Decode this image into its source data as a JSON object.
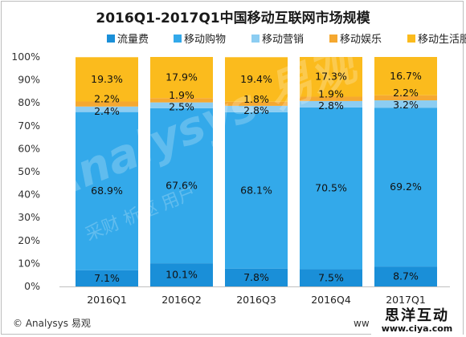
{
  "chart_data": {
    "type": "bar",
    "stacked": true,
    "title": "2016Q1-2017Q1中国移动互联网市场规模",
    "categories": [
      "2016Q1",
      "2016Q2",
      "2016Q3",
      "2016Q4",
      "2017Q1"
    ],
    "ylim": [
      0,
      100
    ],
    "yticks": [
      "0%",
      "10%",
      "20%",
      "30%",
      "40%",
      "50%",
      "60%",
      "70%",
      "80%",
      "90%",
      "100%"
    ],
    "legend_position": "top",
    "grid": false,
    "series": [
      {
        "name": "流量费",
        "color": "#1a8fd8",
        "values": [
          7.1,
          10.1,
          7.8,
          7.5,
          8.7
        ],
        "labels": [
          "7.1%",
          "10.1%",
          "7.8%",
          "7.5%",
          "8.7%"
        ]
      },
      {
        "name": "移动购物",
        "color": "#33a9ea",
        "values": [
          68.9,
          67.6,
          68.1,
          70.5,
          69.2
        ],
        "labels": [
          "68.9%",
          "67.6%",
          "68.1%",
          "70.5%",
          "69.2%"
        ]
      },
      {
        "name": "移动营销",
        "color": "#8ccdf2",
        "values": [
          2.4,
          2.5,
          2.8,
          2.8,
          3.2
        ],
        "labels": [
          "2.4%",
          "2.5%",
          "2.8%",
          "2.8%",
          "3.2%"
        ]
      },
      {
        "name": "移动娱乐",
        "color": "#f5a830",
        "values": [
          2.2,
          1.9,
          1.8,
          1.9,
          2.2
        ],
        "labels": [
          "2.2%",
          "1.9%",
          "1.8%",
          "1.9%",
          "2.2%"
        ]
      },
      {
        "name": "移动生活服务",
        "color": "#fbbb1d",
        "values": [
          19.3,
          17.9,
          19.4,
          17.3,
          16.7
        ],
        "labels": [
          "19.3%",
          "17.9%",
          "19.4%",
          "17.3%",
          "16.7%"
        ]
      }
    ]
  },
  "footer": {
    "copyright": "© Analysys 易观",
    "partial_url": "ww"
  },
  "watermark": {
    "logo_text": "Analysys 易观",
    "slogan": "采财  析驱  用户"
  },
  "stamp": {
    "name": "思洋互动",
    "url": "www.ciya.com"
  }
}
